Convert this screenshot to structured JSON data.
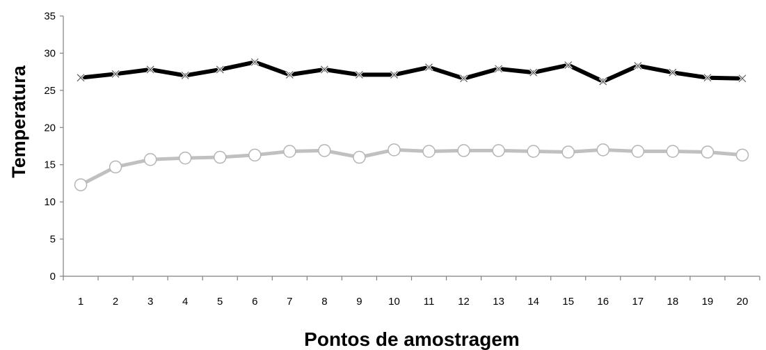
{
  "chart_data": {
    "type": "line",
    "title": "",
    "xlabel": "Pontos de amostragem",
    "ylabel": "Temperatura",
    "categories": [
      "1",
      "2",
      "3",
      "4",
      "5",
      "6",
      "7",
      "8",
      "9",
      "10",
      "11",
      "12",
      "13",
      "14",
      "15",
      "16",
      "17",
      "18",
      "19",
      "20"
    ],
    "ylim": [
      0,
      35
    ],
    "yticks": [
      0,
      5,
      10,
      15,
      20,
      25,
      30,
      35
    ],
    "grid": false,
    "legend": "none",
    "series": [
      {
        "values": [
          26.7,
          27.2,
          27.8,
          27.0,
          27.8,
          28.8,
          27.1,
          27.8,
          27.1,
          27.1,
          28.1,
          26.6,
          27.9,
          27.4,
          28.4,
          26.2,
          28.3,
          27.4,
          26.7,
          26.6
        ],
        "color": "#000000",
        "marker": "x-cross"
      },
      {
        "values": [
          12.3,
          14.7,
          15.7,
          15.9,
          16.0,
          16.3,
          16.8,
          16.9,
          16.0,
          17.0,
          16.8,
          16.9,
          16.9,
          16.8,
          16.7,
          17.0,
          16.8,
          16.8,
          16.7,
          16.3
        ],
        "color": "#c0c0c0",
        "marker": "hollow-circle"
      }
    ]
  }
}
